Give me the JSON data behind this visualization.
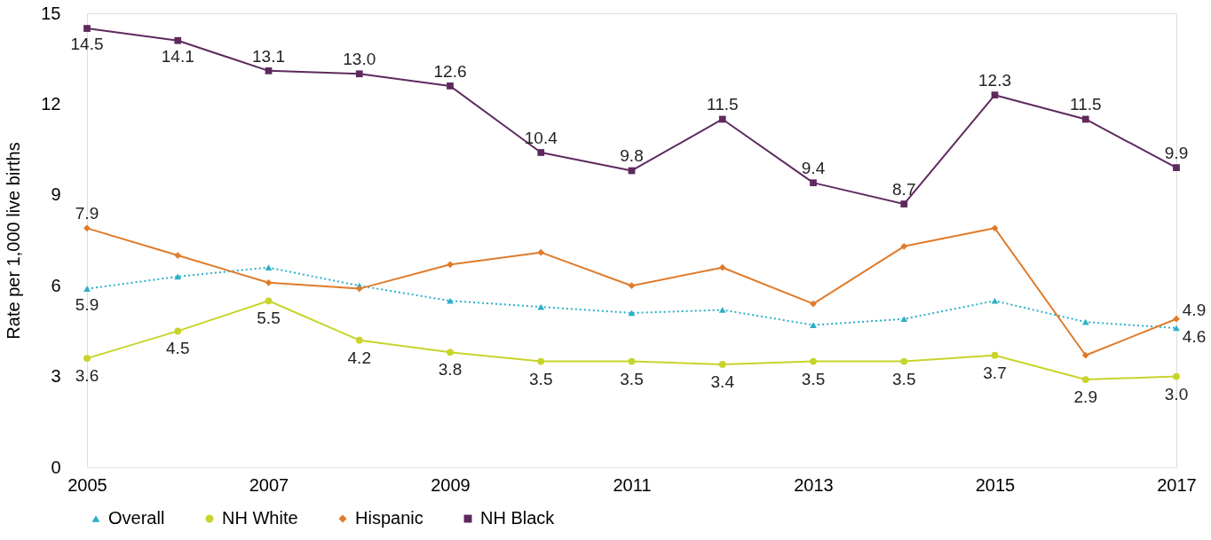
{
  "chart_data": {
    "type": "line",
    "ylabel": "Rate per 1,000 live births",
    "x": [
      2005,
      2006,
      2007,
      2008,
      2009,
      2010,
      2011,
      2012,
      2013,
      2014,
      2015,
      2016,
      2017
    ],
    "xlim": [
      2005,
      2017
    ],
    "xticks": [
      2005,
      2007,
      2009,
      2011,
      2013,
      2015,
      2017
    ],
    "ylim": [
      0,
      15
    ],
    "yticks": [
      0,
      3,
      6,
      9,
      12,
      15
    ],
    "grid": false,
    "legend": "bottom",
    "series": [
      {
        "name": "Overall",
        "color": "#2ab0c8",
        "marker": "triangle",
        "line_style": "dotted",
        "values": [
          5.9,
          6.3,
          6.6,
          6.0,
          5.5,
          5.3,
          5.1,
          5.2,
          4.7,
          4.9,
          5.5,
          4.8,
          4.6
        ],
        "value_labels": [
          "5.9",
          null,
          null,
          null,
          null,
          null,
          null,
          null,
          null,
          null,
          null,
          null,
          "4.6"
        ]
      },
      {
        "name": "NH White",
        "color": "#c8d42a",
        "marker": "circle",
        "line_style": "solid",
        "values": [
          3.6,
          4.5,
          5.5,
          4.2,
          3.8,
          3.5,
          3.5,
          3.4,
          3.5,
          3.5,
          3.7,
          2.9,
          3.0
        ],
        "value_labels": [
          "3.6",
          "4.5",
          "5.5",
          "4.2",
          "3.8",
          "3.5",
          "3.5",
          "3.4",
          "3.5",
          "3.5",
          "3.7",
          "2.9",
          "3.0"
        ]
      },
      {
        "name": "Hispanic",
        "color": "#e07b2a",
        "marker": "diamond",
        "line_style": "solid",
        "values": [
          7.9,
          7.0,
          6.1,
          5.9,
          6.7,
          7.1,
          6.0,
          6.6,
          5.4,
          7.3,
          7.9,
          3.7,
          4.9
        ],
        "value_labels": [
          "7.9",
          null,
          null,
          null,
          null,
          null,
          null,
          null,
          null,
          null,
          null,
          null,
          "4.9"
        ]
      },
      {
        "name": "NH Black",
        "color": "#5e2a5e",
        "marker": "square",
        "line_style": "solid",
        "values": [
          14.5,
          14.1,
          13.1,
          13.0,
          12.6,
          10.4,
          9.8,
          11.5,
          9.4,
          8.7,
          12.3,
          11.5,
          9.9
        ],
        "value_labels": [
          "14.5",
          "14.1",
          "13.1",
          "13.0",
          "12.6",
          "10.4",
          "9.8",
          "11.5",
          "9.4",
          "8.7",
          "12.3",
          "11.5",
          "9.9"
        ]
      }
    ]
  }
}
